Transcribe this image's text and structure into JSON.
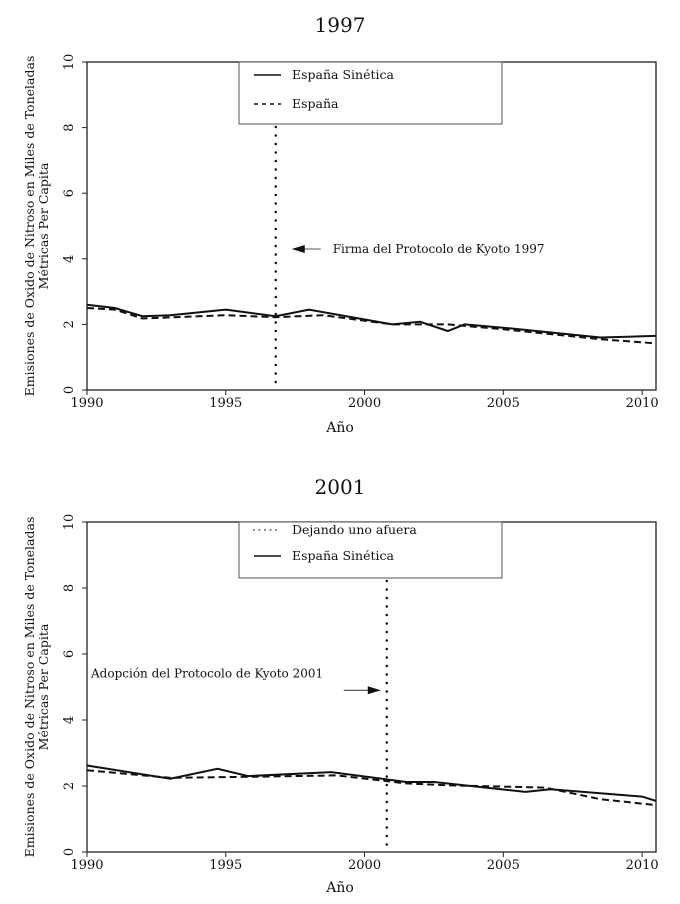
{
  "chart_data": [
    {
      "type": "line",
      "title": "1997",
      "xlabel": "Año",
      "ylabel": [
        "Emisiones de Oxido de Nitroso en Miles de Toneladas",
        "Métricas Per Capita"
      ],
      "xlim": [
        1990,
        2010.5
      ],
      "ylim": [
        0,
        10
      ],
      "xticks": [
        1990,
        1995,
        2000,
        2005,
        2010
      ],
      "yticks": [
        0,
        2,
        4,
        6,
        8,
        10
      ],
      "grid": false,
      "legend": {
        "placement": "top-center",
        "entries": [
          {
            "label": "España Sinética",
            "style": "solid"
          },
          {
            "label": "España",
            "style": "dashed"
          }
        ]
      },
      "series": [
        {
          "name": "España Sinética",
          "style": "solid",
          "color": "#111111",
          "x": [
            1990,
            1991,
            1992,
            1993,
            1995,
            1996.8,
            1998,
            2001,
            2002,
            2003,
            2003.6,
            2005,
            2008.5,
            2010.5
          ],
          "y": [
            2.6,
            2.5,
            2.25,
            2.28,
            2.45,
            2.25,
            2.45,
            2.0,
            2.08,
            1.8,
            2.0,
            1.9,
            1.6,
            1.65
          ]
        },
        {
          "name": "España",
          "style": "dashed",
          "color": "#111111",
          "x": [
            1990,
            1991,
            1992,
            1995,
            1996.8,
            1998.5,
            2001,
            2002,
            2003,
            2005,
            2008.5,
            2010.5
          ],
          "y": [
            2.5,
            2.45,
            2.18,
            2.28,
            2.22,
            2.28,
            2.0,
            2.0,
            2.0,
            1.85,
            1.55,
            1.42
          ]
        }
      ],
      "vline": {
        "x": 1996.8,
        "style": "dotted"
      },
      "annotation": {
        "text": "Firma del Protocolo de Kyoto 1997",
        "y": 4.3,
        "arrow": "left"
      }
    },
    {
      "type": "line",
      "title": "2001",
      "xlabel": "Año",
      "ylabel": [
        "Emisiones de Oxido de Nitroso en Miles de Toneladas",
        "Métricas Per Capita"
      ],
      "xlim": [
        1990,
        2010.5
      ],
      "ylim": [
        0,
        10
      ],
      "xticks": [
        1990,
        1995,
        2000,
        2005,
        2010
      ],
      "yticks": [
        0,
        2,
        4,
        6,
        8,
        10
      ],
      "grid": false,
      "legend": {
        "placement": "top-center",
        "entries": [
          {
            "label": "Dejando uno afuera",
            "style": "dotted"
          },
          {
            "label": "España Sinética",
            "style": "solid"
          }
        ]
      },
      "series": [
        {
          "name": "España Sinética",
          "style": "solid",
          "color": "#111111",
          "x": [
            1990,
            1993,
            1994.7,
            1995.8,
            1998.8,
            2001.5,
            2002.5,
            2005.8,
            2006.7,
            2010,
            2010.5
          ],
          "y": [
            2.62,
            2.22,
            2.52,
            2.3,
            2.42,
            2.12,
            2.12,
            1.82,
            1.9,
            1.68,
            1.55
          ]
        },
        {
          "style": "dashed",
          "color": "#111111",
          "x": [
            1990,
            1993,
            1995.8,
            1999,
            2001.5,
            2003,
            2006.5,
            2008.5,
            2010.5
          ],
          "y": [
            2.48,
            2.25,
            2.28,
            2.32,
            2.08,
            2.02,
            1.95,
            1.6,
            1.42
          ]
        }
      ],
      "vline": {
        "x": 2000.8,
        "style": "dotted"
      },
      "annotation": {
        "text": "Adopción del Protocolo de Kyoto 2001",
        "y": 4.9,
        "arrow": "right"
      }
    }
  ]
}
